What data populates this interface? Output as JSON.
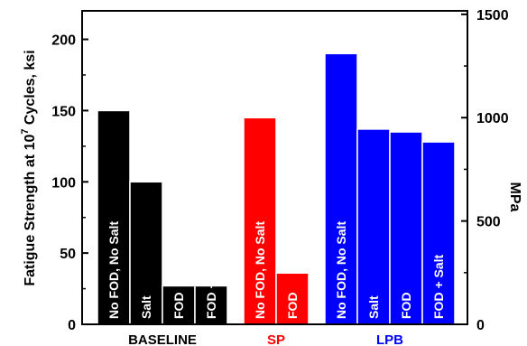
{
  "chart_data": {
    "type": "bar",
    "ylabel_left": {
      "main": "Fatigue Strength at 10",
      "superscript": "7",
      "tail": " Cycles, ksi"
    },
    "ylabel_right": "MPa",
    "ylim_left": [
      0,
      220
    ],
    "ylim_right_mpa": [
      0,
      1517
    ],
    "yticks_left": [
      "0",
      "50",
      "100",
      "150",
      "200"
    ],
    "yticks_left_values": [
      0,
      50,
      100,
      150,
      200
    ],
    "yticks_right": [
      "0",
      "500",
      "1000",
      "1500"
    ],
    "yticks_right_values": [
      0,
      500,
      1000,
      1500
    ],
    "mpa_per_ksi": 6.895,
    "groups": [
      {
        "label": "BASELINE",
        "color": "#000000",
        "bars": [
          {
            "label": "No FOD, No Salt",
            "value": 150
          },
          {
            "label": "Salt",
            "value": 100
          },
          {
            "label": "FOD",
            "value": 27
          },
          {
            "label": "FOD + Salt",
            "value": 27
          }
        ]
      },
      {
        "label": "SP",
        "color": "#ff0000",
        "bars": [
          {
            "label": "No FOD, No Salt",
            "value": 145
          },
          {
            "label": "FOD",
            "value": 36
          }
        ]
      },
      {
        "label": "LPB",
        "color": "#0000ff",
        "bars": [
          {
            "label": "No FOD, No Salt",
            "value": 190
          },
          {
            "label": "Salt",
            "value": 137
          },
          {
            "label": "FOD",
            "value": 135
          },
          {
            "label": "FOD + Salt",
            "value": 128
          }
        ]
      }
    ]
  }
}
